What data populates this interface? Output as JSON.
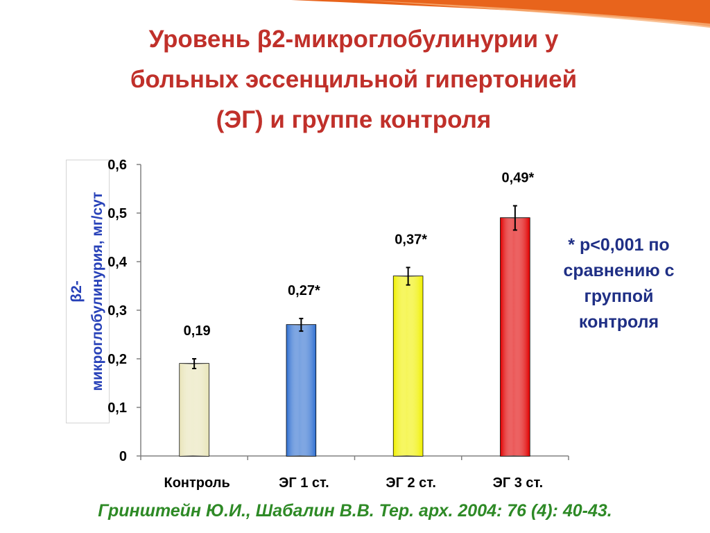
{
  "slide": {
    "title_lines": [
      "Уровень β2-микроглобулинурии у",
      "больных эссенцильной гипертонией",
      "(ЭГ) и группе контроля"
    ],
    "note_lines": [
      "* p<0,001 по",
      "сравнению с",
      "группой",
      "контроля"
    ],
    "citation": "Гринштейн Ю.И., Шабалин В.В. Тер. арх. 2004: 76 (4): 40-43.",
    "accent_color": "#e8641c",
    "title_color": "#c0302a",
    "note_color": "#1f2f85",
    "citation_color": "#2e8a26"
  },
  "chart_data": {
    "type": "bar",
    "title": "",
    "xlabel": "",
    "ylabel": "β2-микроглобулинурия, мг/сут",
    "ylabel_lines": [
      "β2-",
      "микроглобулинурия, мг/сут"
    ],
    "categories": [
      "Контроль",
      "ЭГ 1 ст.",
      "ЭГ 2 ст.",
      "ЭГ 3 ст."
    ],
    "values": [
      0.19,
      0.27,
      0.37,
      0.49
    ],
    "error": [
      0.01,
      0.013,
      0.018,
      0.025
    ],
    "data_labels": [
      "0,19",
      "0,27*",
      "0,37*",
      "0,49*"
    ],
    "bar_colors": [
      "#e8e4b8",
      "#2f6fd0",
      "#f0f000",
      "#e00000"
    ],
    "ylim": [
      0,
      0.6
    ],
    "yticks": [
      0,
      0.1,
      0.2,
      0.3,
      0.4,
      0.5,
      0.6
    ],
    "ytick_labels": [
      "0",
      "0,1",
      "0,2",
      "0,3",
      "0,4",
      "0,5",
      "0,6"
    ],
    "grid": false,
    "legend": "none"
  }
}
